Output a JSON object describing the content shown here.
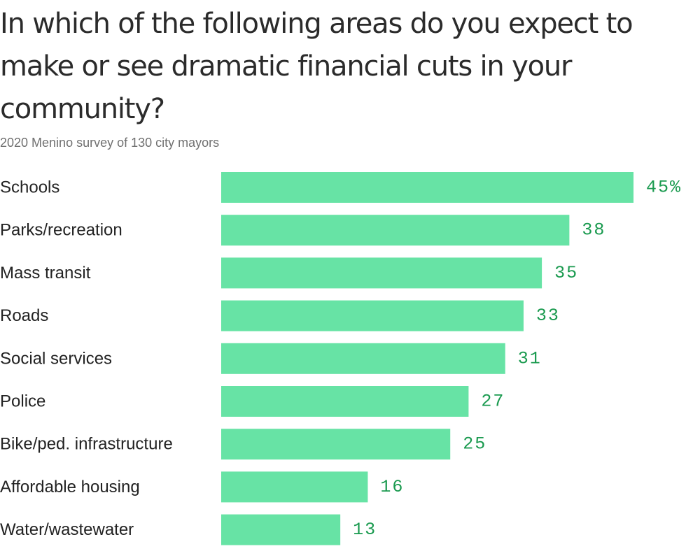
{
  "chart_data": {
    "type": "bar",
    "orientation": "horizontal",
    "title": "In which of the following areas do you expect to make or see dramatic financial cuts in your community?",
    "subtitle": "2020 Menino survey of 130 city mayors",
    "categories": [
      "Schools",
      "Parks/recreation",
      "Mass transit",
      "Roads",
      "Social services",
      "Police",
      "Bike/ped. infrastructure",
      "Affordable housing",
      "Water/wastewater"
    ],
    "values": [
      45,
      38,
      35,
      33,
      31,
      27,
      25,
      16,
      13
    ],
    "value_labels": [
      "45%",
      "38",
      "35",
      "33",
      "31",
      "27",
      "25",
      "16",
      "13"
    ],
    "unit": "%",
    "xlim": [
      0,
      45
    ],
    "grid": false,
    "legend": "none",
    "colors": {
      "bar": "#67e3a5",
      "value_text": "#1a9a4f",
      "label_text": "#222222",
      "title_text": "#2b2b2b",
      "subtitle_text": "#707070"
    }
  }
}
